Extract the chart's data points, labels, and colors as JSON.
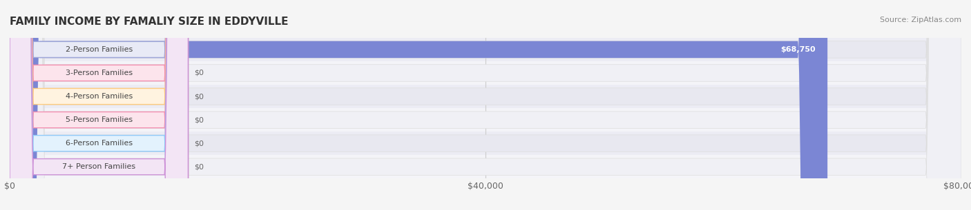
{
  "title": "FAMILY INCOME BY FAMALIY SIZE IN EDDYVILLE",
  "source": "Source: ZipAtlas.com",
  "categories": [
    "2-Person Families",
    "3-Person Families",
    "4-Person Families",
    "5-Person Families",
    "6-Person Families",
    "7+ Person Families"
  ],
  "values": [
    68750,
    0,
    0,
    0,
    0,
    0
  ],
  "bar_colors": [
    "#7b86d4",
    "#f4a0b0",
    "#f5c98a",
    "#f5a898",
    "#a8c4e8",
    "#c8a8d8"
  ],
  "label_bg_colors": [
    "#e8eaf6",
    "#fce4ec",
    "#fff3e0",
    "#fce4ec",
    "#e3f2fd",
    "#f3e5f5"
  ],
  "label_border_colors": [
    "#9fa8da",
    "#f48fb1",
    "#ffcc80",
    "#f48fb1",
    "#90caf9",
    "#ce93d8"
  ],
  "value_labels": [
    "$68,750",
    "$0",
    "$0",
    "$0",
    "$0",
    "$0"
  ],
  "xlim": [
    0,
    80000
  ],
  "xticks": [
    0,
    40000,
    80000
  ],
  "xtick_labels": [
    "$0",
    "$40,000",
    "$80,000"
  ],
  "background_color": "#f5f5f5",
  "bar_bg_color": "#efefef",
  "grid_color": "#cccccc",
  "title_fontsize": 11,
  "source_fontsize": 8,
  "label_fontsize": 8,
  "value_fontsize": 8
}
